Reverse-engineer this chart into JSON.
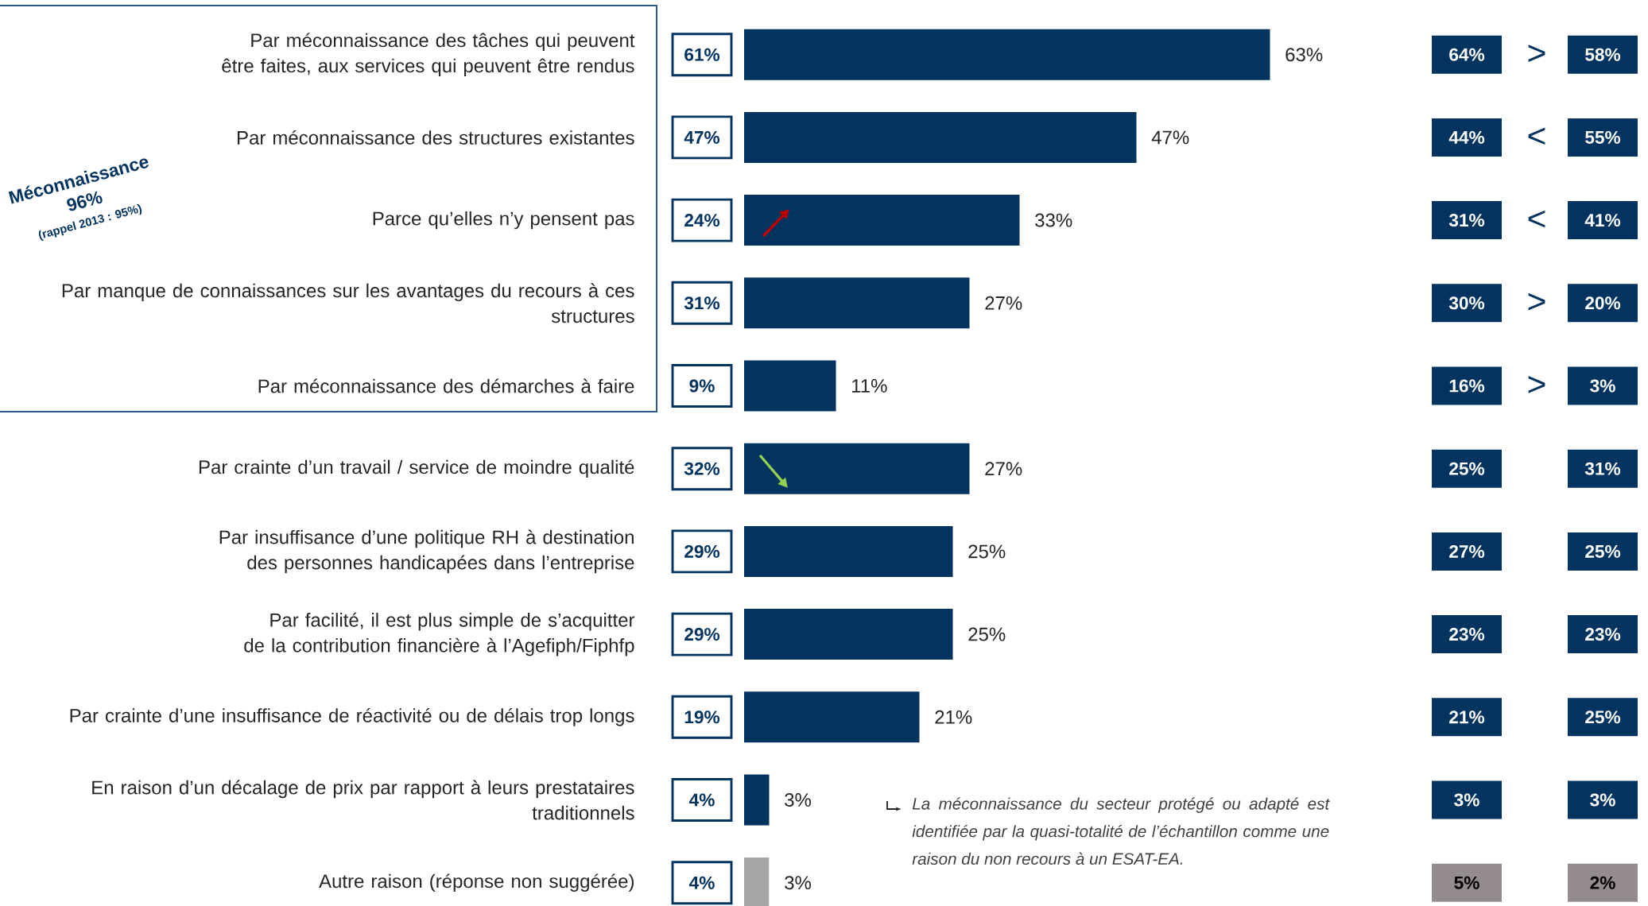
{
  "chart_data": {
    "type": "bar",
    "orientation": "horizontal",
    "categories": [
      "Par méconnaissance des tâches qui peuvent être faites, aux services qui peuvent être rendus",
      "Par méconnaissance des structures existantes",
      "Parce qu’elles n’y pensent pas",
      "Par manque de connaissances sur les avantages du recours à ces structures",
      "Par méconnaissance des démarches à faire",
      "Par crainte d’un travail / service de moindre qualité",
      "Par insuffisance d’une politique RH à destination des personnes handicapées dans l’entreprise",
      "Par facilité, il est plus simple de s’acquitter de la contribution financière à l’Agefiph/Fiphfp",
      "Par crainte d’une insuffisance de réactivité ou de délais trop longs",
      "En raison d’un décalage de prix par rapport à leurs prestataires traditionnels",
      "Autre raison (réponse non suggérée)"
    ],
    "values": [
      63,
      47,
      33,
      27,
      11,
      27,
      25,
      25,
      21,
      3,
      3
    ],
    "colors": [
      "#03335f",
      "#03335f",
      "#03335f",
      "#03335f",
      "#03335f",
      "#03335f",
      "#03335f",
      "#03335f",
      "#03335f",
      "#03335f",
      "#a6a6a6"
    ],
    "value_labels": [
      "63%",
      "47%",
      "33%",
      "27%",
      "11%",
      "27%",
      "25%",
      "25%",
      "21%",
      "3%",
      "3%"
    ],
    "annotations": [
      "Méconnaissance",
      "96%",
      "(rappel 2013 : 95%)",
      "La méconnaissance du secteur protégé ou adapté est identifiée par la quasi-totalité de l’échantillon comme une raison du non recours à un ESAT-EA.",
      "61%",
      "47%",
      "24%",
      "31%",
      "9%",
      "32%",
      "29%",
      "29%",
      "19%",
      "4%",
      "4%",
      "64%",
      "44%",
      "31%",
      "30%",
      "16%",
      "25%",
      "27%",
      "23%",
      "21%",
      "3%",
      "5%",
      "58%",
      "55%",
      "41%",
      "20%",
      "3%",
      "31%",
      "25%",
      "23%",
      "25%",
      "3%",
      "2%",
      ">",
      "<",
      "<",
      ">",
      ">"
    ]
  }
}
